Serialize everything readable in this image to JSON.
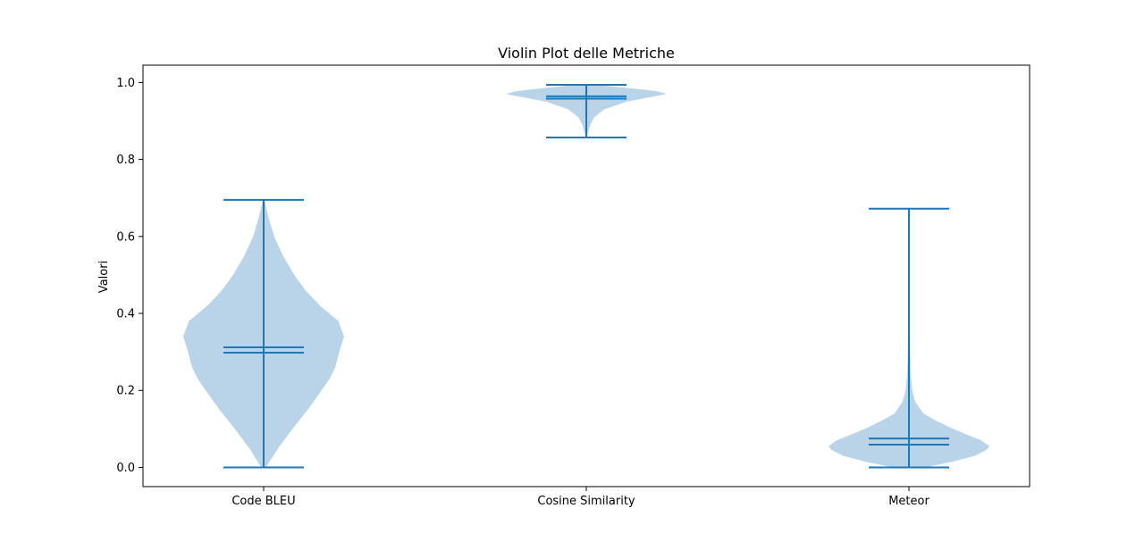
{
  "chart_data": {
    "type": "violin",
    "title": "Violin Plot delle Metriche",
    "xlabel": "",
    "ylabel": "Valori",
    "ylim": [
      -0.05,
      1.045
    ],
    "yticks": [
      0.0,
      0.2,
      0.4,
      0.6,
      0.8,
      1.0
    ],
    "ytick_labels": [
      "0.0",
      "0.2",
      "0.4",
      "0.6",
      "0.8",
      "1.0"
    ],
    "categories": [
      "Code BLEU",
      "Cosine Similarity",
      "Meteor"
    ],
    "grid": false,
    "colors": {
      "body": "#b9d4e8",
      "lines": "#1f77b4"
    },
    "series": [
      {
        "category": "Code BLEU",
        "min": 0.0,
        "max": 0.695,
        "mean": 0.312,
        "median": 0.298,
        "density": [
          [
            0.0,
            0.03
          ],
          [
            0.05,
            0.18
          ],
          [
            0.1,
            0.36
          ],
          [
            0.15,
            0.55
          ],
          [
            0.2,
            0.72
          ],
          [
            0.23,
            0.82
          ],
          [
            0.26,
            0.89
          ],
          [
            0.3,
            0.94
          ],
          [
            0.34,
            1.0
          ],
          [
            0.38,
            0.93
          ],
          [
            0.42,
            0.7
          ],
          [
            0.46,
            0.52
          ],
          [
            0.5,
            0.38
          ],
          [
            0.55,
            0.24
          ],
          [
            0.6,
            0.13
          ],
          [
            0.65,
            0.06
          ],
          [
            0.695,
            0.01
          ]
        ]
      },
      {
        "category": "Cosine Similarity",
        "min": 0.857,
        "max": 0.994,
        "mean": 0.964,
        "median": 0.958,
        "density": [
          [
            0.857,
            0.01
          ],
          [
            0.87,
            0.02
          ],
          [
            0.89,
            0.05
          ],
          [
            0.91,
            0.1
          ],
          [
            0.93,
            0.22
          ],
          [
            0.95,
            0.5
          ],
          [
            0.962,
            0.8
          ],
          [
            0.97,
            1.0
          ],
          [
            0.978,
            0.86
          ],
          [
            0.986,
            0.5
          ],
          [
            0.994,
            0.12
          ]
        ]
      },
      {
        "category": "Meteor",
        "min": 0.0,
        "max": 0.672,
        "mean": 0.075,
        "median": 0.059,
        "density": [
          [
            0.0,
            0.2
          ],
          [
            0.015,
            0.55
          ],
          [
            0.03,
            0.82
          ],
          [
            0.045,
            0.96
          ],
          [
            0.055,
            1.0
          ],
          [
            0.07,
            0.9
          ],
          [
            0.085,
            0.72
          ],
          [
            0.1,
            0.55
          ],
          [
            0.12,
            0.35
          ],
          [
            0.14,
            0.18
          ],
          [
            0.17,
            0.08
          ],
          [
            0.2,
            0.04
          ],
          [
            0.25,
            0.02
          ],
          [
            0.35,
            0.01
          ],
          [
            0.5,
            0.005
          ],
          [
            0.672,
            0.003
          ]
        ]
      }
    ]
  }
}
